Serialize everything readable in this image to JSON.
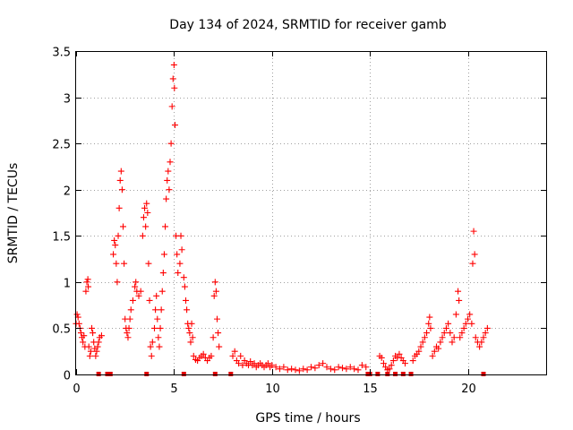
{
  "chart_data": {
    "type": "scatter",
    "title": "Day 134 of 2024, SRMTID for receiver gamb",
    "xlabel": "GPS time / hours",
    "ylabel": "SRMTID / TECUs",
    "xlim": [
      0,
      24
    ],
    "ylim": [
      0,
      3.5
    ],
    "xticks": [
      0,
      5,
      10,
      15,
      20
    ],
    "xtick_labels": [
      "0",
      "5",
      "10",
      "15",
      "20"
    ],
    "yticks": [
      0,
      0.5,
      1,
      1.5,
      2,
      2.5,
      3,
      3.5
    ],
    "ytick_labels": [
      "0",
      "0.5",
      "1",
      "1.5",
      "2",
      "2.5",
      "3",
      "3.5"
    ],
    "grid": true,
    "marker_color": "#ff0000",
    "flag_color": "#e00000",
    "series": [
      {
        "name": "SRMTID",
        "marker": "plus",
        "points": [
          [
            0.0,
            0.55
          ],
          [
            0.05,
            0.65
          ],
          [
            0.1,
            0.62
          ],
          [
            0.15,
            0.55
          ],
          [
            0.2,
            0.5
          ],
          [
            0.25,
            0.45
          ],
          [
            0.3,
            0.4
          ],
          [
            0.35,
            0.35
          ],
          [
            0.4,
            0.42
          ],
          [
            0.45,
            0.3
          ],
          [
            0.5,
            0.9
          ],
          [
            0.55,
            1.0
          ],
          [
            0.6,
            1.03
          ],
          [
            0.62,
            0.95
          ],
          [
            0.65,
            0.3
          ],
          [
            0.7,
            0.2
          ],
          [
            0.75,
            0.25
          ],
          [
            0.8,
            0.5
          ],
          [
            0.85,
            0.45
          ],
          [
            0.9,
            0.35
          ],
          [
            0.95,
            0.28
          ],
          [
            1.0,
            0.2
          ],
          [
            1.05,
            0.25
          ],
          [
            1.1,
            0.3
          ],
          [
            1.15,
            0.35
          ],
          [
            1.2,
            0.4
          ],
          [
            1.3,
            0.42
          ],
          [
            1.9,
            1.3
          ],
          [
            1.95,
            1.45
          ],
          [
            2.0,
            1.4
          ],
          [
            2.05,
            1.2
          ],
          [
            2.1,
            1.0
          ],
          [
            2.15,
            1.5
          ],
          [
            2.2,
            1.8
          ],
          [
            2.25,
            2.1
          ],
          [
            2.3,
            2.2
          ],
          [
            2.35,
            2.0
          ],
          [
            2.4,
            1.6
          ],
          [
            2.45,
            1.2
          ],
          [
            2.5,
            0.6
          ],
          [
            2.55,
            0.5
          ],
          [
            2.6,
            0.45
          ],
          [
            2.65,
            0.4
          ],
          [
            2.7,
            0.5
          ],
          [
            2.75,
            0.6
          ],
          [
            2.8,
            0.7
          ],
          [
            2.9,
            0.8
          ],
          [
            3.0,
            0.95
          ],
          [
            3.05,
            1.0
          ],
          [
            3.1,
            0.9
          ],
          [
            3.2,
            0.85
          ],
          [
            3.3,
            0.9
          ],
          [
            3.4,
            1.5
          ],
          [
            3.45,
            1.7
          ],
          [
            3.5,
            1.8
          ],
          [
            3.55,
            1.6
          ],
          [
            3.6,
            1.85
          ],
          [
            3.65,
            1.75
          ],
          [
            3.7,
            1.2
          ],
          [
            3.75,
            0.8
          ],
          [
            3.8,
            0.3
          ],
          [
            3.85,
            0.2
          ],
          [
            3.9,
            0.35
          ],
          [
            4.0,
            0.5
          ],
          [
            4.05,
            0.7
          ],
          [
            4.1,
            0.85
          ],
          [
            4.15,
            0.6
          ],
          [
            4.2,
            0.4
          ],
          [
            4.25,
            0.3
          ],
          [
            4.3,
            0.5
          ],
          [
            4.35,
            0.7
          ],
          [
            4.4,
            0.9
          ],
          [
            4.45,
            1.1
          ],
          [
            4.5,
            1.3
          ],
          [
            4.55,
            1.6
          ],
          [
            4.6,
            1.9
          ],
          [
            4.65,
            2.1
          ],
          [
            4.7,
            2.2
          ],
          [
            4.75,
            2.0
          ],
          [
            4.8,
            2.3
          ],
          [
            4.85,
            2.5
          ],
          [
            4.9,
            2.9
          ],
          [
            4.95,
            3.2
          ],
          [
            5.0,
            3.35
          ],
          [
            5.02,
            3.1
          ],
          [
            5.05,
            2.7
          ],
          [
            5.1,
            1.5
          ],
          [
            5.15,
            1.3
          ],
          [
            5.2,
            1.1
          ],
          [
            5.3,
            1.2
          ],
          [
            5.35,
            1.5
          ],
          [
            5.4,
            1.35
          ],
          [
            5.5,
            1.05
          ],
          [
            5.55,
            0.95
          ],
          [
            5.6,
            0.8
          ],
          [
            5.65,
            0.7
          ],
          [
            5.7,
            0.55
          ],
          [
            5.75,
            0.5
          ],
          [
            5.8,
            0.45
          ],
          [
            5.85,
            0.35
          ],
          [
            5.9,
            0.55
          ],
          [
            5.95,
            0.4
          ],
          [
            6.0,
            0.2
          ],
          [
            6.1,
            0.16
          ],
          [
            6.2,
            0.15
          ],
          [
            6.3,
            0.18
          ],
          [
            6.4,
            0.2
          ],
          [
            6.5,
            0.22
          ],
          [
            6.6,
            0.18
          ],
          [
            6.7,
            0.15
          ],
          [
            6.8,
            0.18
          ],
          [
            6.9,
            0.2
          ],
          [
            7.0,
            0.4
          ],
          [
            7.05,
            0.85
          ],
          [
            7.1,
            1.0
          ],
          [
            7.15,
            0.9
          ],
          [
            7.2,
            0.6
          ],
          [
            7.25,
            0.45
          ],
          [
            7.3,
            0.3
          ],
          [
            8.0,
            0.2
          ],
          [
            8.1,
            0.25
          ],
          [
            8.2,
            0.15
          ],
          [
            8.3,
            0.12
          ],
          [
            8.4,
            0.2
          ],
          [
            8.5,
            0.1
          ],
          [
            8.6,
            0.15
          ],
          [
            8.7,
            0.12
          ],
          [
            8.8,
            0.1
          ],
          [
            8.9,
            0.14
          ],
          [
            9.0,
            0.1
          ],
          [
            9.1,
            0.12
          ],
          [
            9.2,
            0.08
          ],
          [
            9.3,
            0.1
          ],
          [
            9.4,
            0.12
          ],
          [
            9.5,
            0.1
          ],
          [
            9.6,
            0.08
          ],
          [
            9.7,
            0.1
          ],
          [
            9.8,
            0.12
          ],
          [
            9.9,
            0.08
          ],
          [
            10.0,
            0.1
          ],
          [
            10.2,
            0.08
          ],
          [
            10.4,
            0.06
          ],
          [
            10.6,
            0.08
          ],
          [
            10.8,
            0.05
          ],
          [
            11.0,
            0.06
          ],
          [
            11.2,
            0.05
          ],
          [
            11.4,
            0.04
          ],
          [
            11.6,
            0.06
          ],
          [
            11.8,
            0.05
          ],
          [
            12.0,
            0.08
          ],
          [
            12.2,
            0.07
          ],
          [
            12.4,
            0.1
          ],
          [
            12.6,
            0.12
          ],
          [
            12.8,
            0.08
          ],
          [
            13.0,
            0.06
          ],
          [
            13.2,
            0.05
          ],
          [
            13.4,
            0.08
          ],
          [
            13.6,
            0.07
          ],
          [
            13.8,
            0.06
          ],
          [
            14.0,
            0.08
          ],
          [
            14.2,
            0.06
          ],
          [
            14.4,
            0.05
          ],
          [
            14.6,
            0.1
          ],
          [
            14.8,
            0.08
          ],
          [
            15.5,
            0.2
          ],
          [
            15.6,
            0.18
          ],
          [
            15.7,
            0.12
          ],
          [
            15.8,
            0.08
          ],
          [
            15.9,
            0.05
          ],
          [
            16.0,
            0.06
          ],
          [
            16.1,
            0.1
          ],
          [
            16.2,
            0.15
          ],
          [
            16.3,
            0.2
          ],
          [
            16.4,
            0.18
          ],
          [
            16.5,
            0.22
          ],
          [
            16.6,
            0.18
          ],
          [
            16.7,
            0.15
          ],
          [
            16.8,
            0.12
          ],
          [
            17.2,
            0.15
          ],
          [
            17.3,
            0.2
          ],
          [
            17.4,
            0.22
          ],
          [
            17.5,
            0.25
          ],
          [
            17.6,
            0.3
          ],
          [
            17.7,
            0.35
          ],
          [
            17.8,
            0.4
          ],
          [
            17.9,
            0.45
          ],
          [
            18.0,
            0.55
          ],
          [
            18.05,
            0.62
          ],
          [
            18.1,
            0.5
          ],
          [
            18.2,
            0.2
          ],
          [
            18.3,
            0.25
          ],
          [
            18.4,
            0.3
          ],
          [
            18.5,
            0.28
          ],
          [
            18.6,
            0.35
          ],
          [
            18.7,
            0.4
          ],
          [
            18.8,
            0.45
          ],
          [
            18.9,
            0.5
          ],
          [
            19.0,
            0.55
          ],
          [
            19.1,
            0.45
          ],
          [
            19.2,
            0.35
          ],
          [
            19.3,
            0.4
          ],
          [
            19.4,
            0.65
          ],
          [
            19.5,
            0.9
          ],
          [
            19.55,
            0.8
          ],
          [
            19.6,
            0.4
          ],
          [
            19.7,
            0.45
          ],
          [
            19.8,
            0.5
          ],
          [
            19.9,
            0.55
          ],
          [
            20.0,
            0.6
          ],
          [
            20.1,
            0.65
          ],
          [
            20.2,
            0.55
          ],
          [
            20.25,
            1.2
          ],
          [
            20.3,
            1.55
          ],
          [
            20.35,
            1.3
          ],
          [
            20.4,
            0.4
          ],
          [
            20.5,
            0.35
          ],
          [
            20.6,
            0.3
          ],
          [
            20.7,
            0.35
          ],
          [
            20.8,
            0.4
          ],
          [
            20.9,
            0.45
          ],
          [
            21.0,
            0.5
          ]
        ]
      },
      {
        "name": "flags",
        "marker": "square",
        "points": [
          [
            1.15,
            0
          ],
          [
            1.6,
            0
          ],
          [
            1.75,
            0
          ],
          [
            3.6,
            0
          ],
          [
            5.5,
            0
          ],
          [
            7.1,
            0
          ],
          [
            7.9,
            0
          ],
          [
            14.9,
            0
          ],
          [
            15.0,
            0
          ],
          [
            15.4,
            0
          ],
          [
            15.9,
            0
          ],
          [
            16.3,
            0
          ],
          [
            16.7,
            0
          ],
          [
            17.1,
            0
          ],
          [
            20.8,
            0
          ]
        ]
      }
    ]
  }
}
